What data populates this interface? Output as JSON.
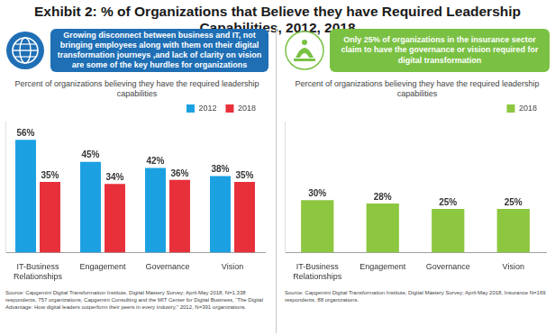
{
  "title": "Exhibit 2: % of Organizations that Believe they have Required Leadership Capabilities, 2012, 2018",
  "chart_data": [
    {
      "type": "bar",
      "annotations": [
        "Growing disconnect between business and IT, not bringing employees along with them on their digital transformation journeys ,and lack of clarity on vision are some of the key hurdles for organizations"
      ],
      "title": "Percent of organizations believing they have the required leadership capabilities",
      "categories": [
        "IT-Business Relationships",
        "Engagement",
        "Governance",
        "Vision"
      ],
      "series": [
        {
          "name": "2012",
          "color": "#1ba1e2",
          "values": [
            56,
            45,
            42,
            38
          ],
          "value_labels": [
            "56%",
            "45%",
            "42%",
            "38%"
          ]
        },
        {
          "name": "2018",
          "color": "#e8303a",
          "values": [
            35,
            34,
            36,
            35
          ],
          "value_labels": [
            "35%",
            "34%",
            "36%",
            "35%"
          ]
        }
      ],
      "ylim": [
        0,
        65
      ],
      "grid": false,
      "legend": "top-right",
      "data_labels": true,
      "tick_labels": "x",
      "color": "#1f6fb5",
      "source": "Source: Capgemini Digital Transformation Institute, Digital Mastery Survey; April-May 2018, N=1,338 respondents, 757 organizations; Capgemini Consulting and the MIT Center for Digital Business, “The Digital Advantage: How digital leaders outperform their peers in every industry,” 2012, N=391 organizations."
    },
    {
      "type": "bar",
      "annotations": [
        "Only 25% of organizations in the insurance sector claim to have the governance or vision required for digital transformation"
      ],
      "title": "Percent of organizations believing they have the required leadership capabilities",
      "categories": [
        "IT-Business Relationships",
        "Engagement",
        "Governance",
        "Vision"
      ],
      "series": [
        {
          "name": "2018",
          "color": "#8dc63f",
          "values": [
            30,
            28,
            25,
            25
          ],
          "value_labels": [
            "30%",
            "28%",
            "25%",
            "25%"
          ]
        }
      ],
      "ylim": [
        0,
        75
      ],
      "grid": false,
      "legend": "top-right",
      "data_labels": true,
      "tick_labels": "x",
      "color": "#7ac143",
      "source": "Source: Capgemini Digital Transformation Institute, Digital Mastery Survey; April-May 2018, Insurance N=169 respondents, 88 organizations."
    }
  ]
}
